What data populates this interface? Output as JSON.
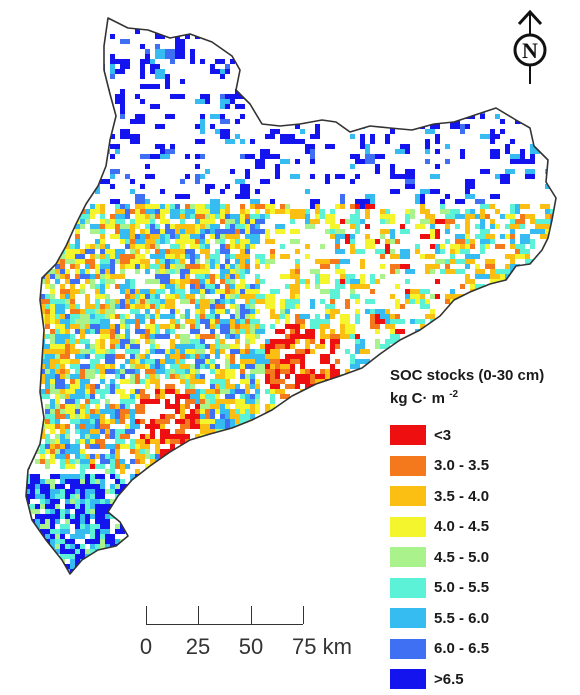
{
  "legend": {
    "title": "SOC stocks (0-30 cm)",
    "unit": "kg C· m",
    "unit_exponent": "-2",
    "classes": [
      {
        "label": "<3",
        "color": "#ee1010"
      },
      {
        "label": "3.0 - 3.5",
        "color": "#f4791d"
      },
      {
        "label": "3.5 - 4.0",
        "color": "#fbbf14"
      },
      {
        "label": "4.0 - 4.5",
        "color": "#f5f52e"
      },
      {
        "label": "4.5 - 5.0",
        "color": "#aaf28b"
      },
      {
        "label": "5.0 - 5.5",
        "color": "#5cf2d7"
      },
      {
        "label": "5.5 - 6.0",
        "color": "#37bcf1"
      },
      {
        "label": "6.0 - 6.5",
        "color": "#3f6ff2"
      },
      {
        "label": ">6.5",
        "color": "#1414ee"
      }
    ]
  },
  "scalebar": {
    "labels": [
      "0",
      "25",
      "50",
      "75 km"
    ]
  },
  "north_arrow": {
    "letter": "N",
    "icon": "north-arrow-icon"
  }
}
